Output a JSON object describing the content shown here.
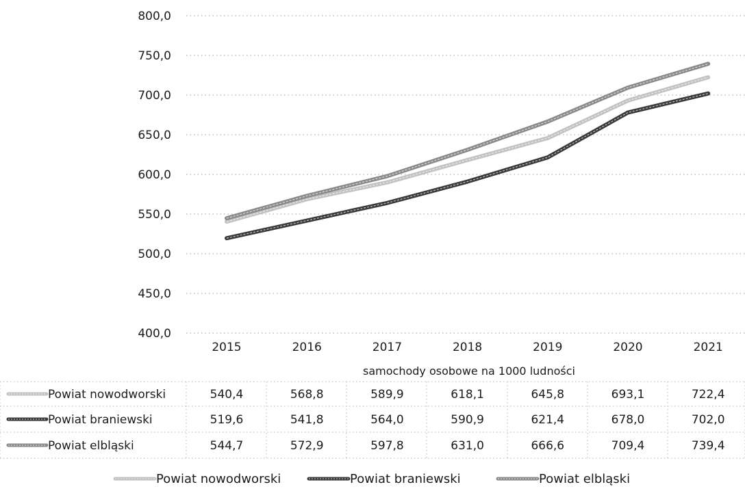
{
  "chart_data": {
    "type": "line",
    "categories": [
      "2015",
      "2016",
      "2017",
      "2018",
      "2019",
      "2020",
      "2021"
    ],
    "series": [
      {
        "name": "Powiat nowodworski",
        "values": [
          540.4,
          568.8,
          589.9,
          618.1,
          645.8,
          693.1,
          722.4
        ],
        "color": "#c2c2c2"
      },
      {
        "name": "Powiat braniewski",
        "values": [
          519.6,
          541.8,
          564.0,
          590.9,
          621.4,
          678.0,
          702.0
        ],
        "color": "#3a3a3a"
      },
      {
        "name": "Powiat elbląski",
        "values": [
          544.7,
          572.9,
          597.8,
          631.0,
          666.6,
          709.4,
          739.4
        ],
        "color": "#8a8a8a"
      }
    ],
    "table_values": [
      [
        "540,4",
        "568,8",
        "589,9",
        "618,1",
        "645,8",
        "693,1",
        "722,4"
      ],
      [
        "519,6",
        "541,8",
        "564,0",
        "590,9",
        "621,4",
        "678,0",
        "702,0"
      ],
      [
        "544,7",
        "572,9",
        "597,8",
        "631,0",
        "666,6",
        "709,4",
        "739,4"
      ]
    ],
    "y_tick_labels": [
      "400,0",
      "450,0",
      "500,0",
      "550,0",
      "600,0",
      "650,0",
      "700,0",
      "750,0",
      "800,0"
    ],
    "ylim": [
      400,
      800
    ],
    "xlabel": "samochody osobowe na 1000 ludności",
    "title": "",
    "ylabel": "",
    "grid": true,
    "legend_position": "bottom"
  }
}
